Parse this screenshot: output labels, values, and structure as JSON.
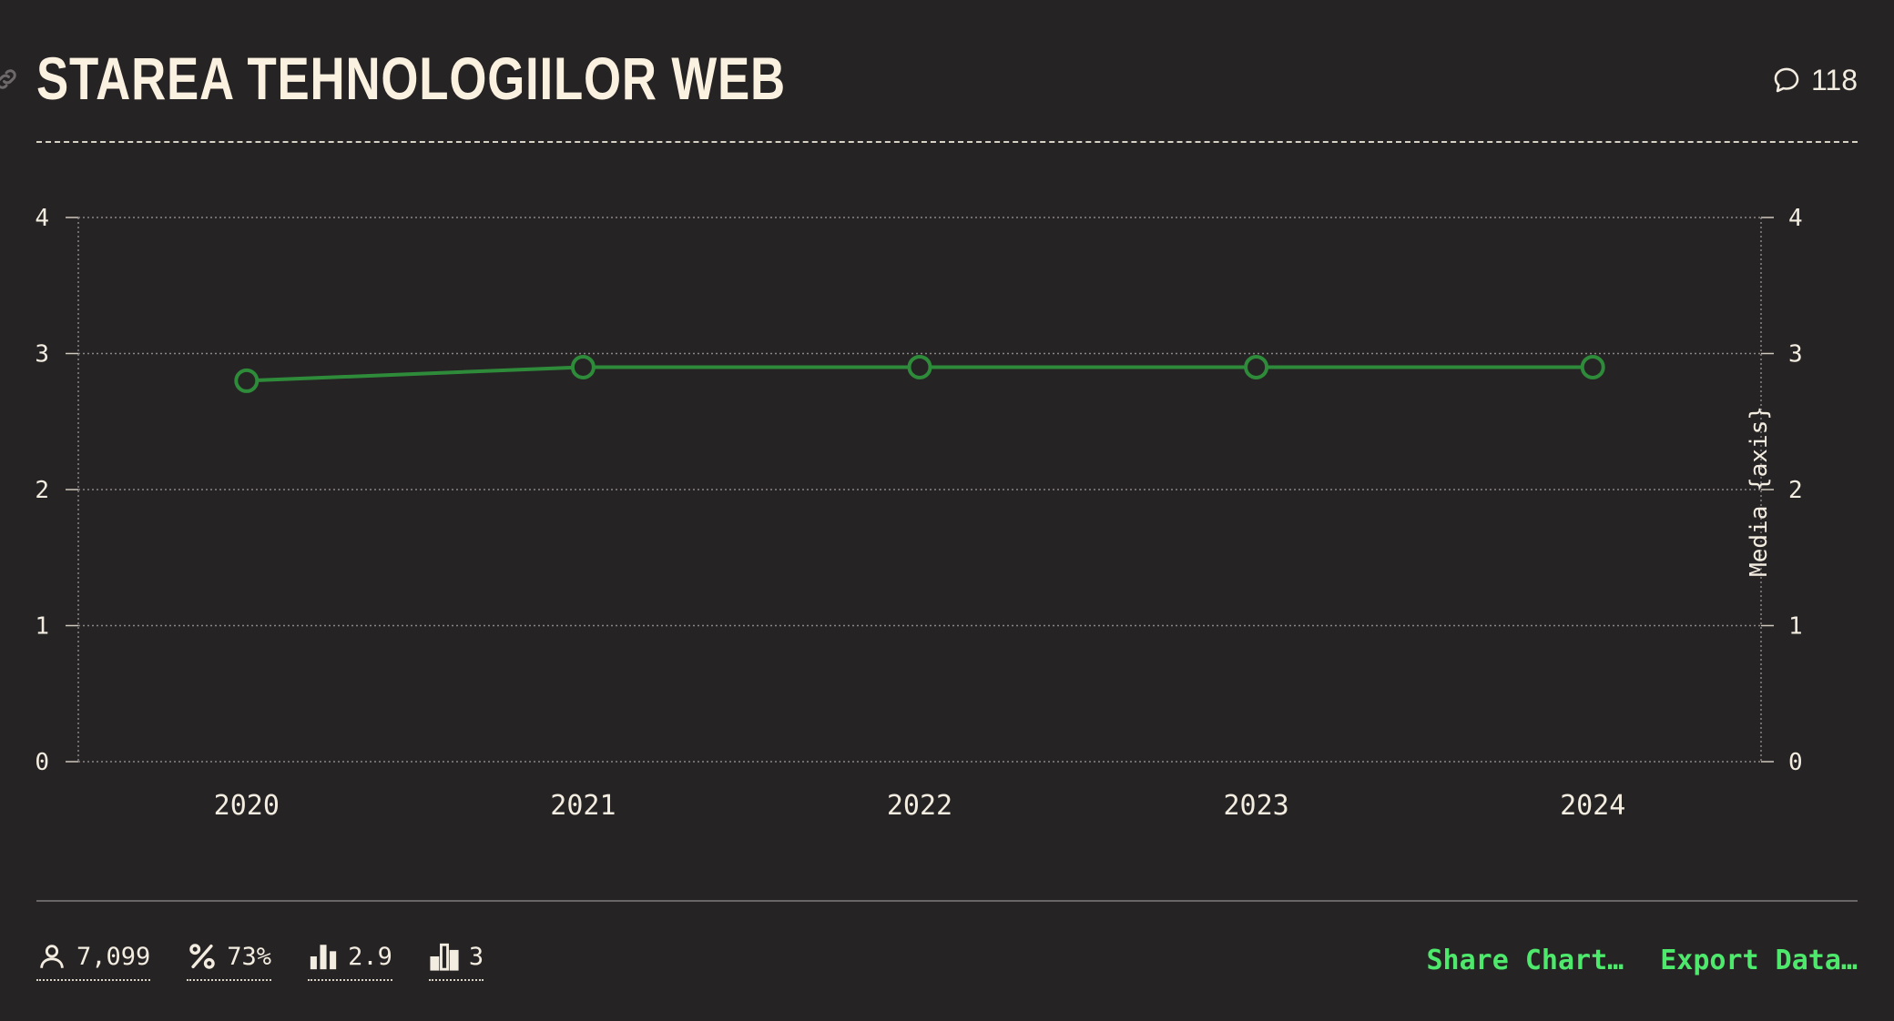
{
  "title": "STAREA TEHNOLOGIILOR WEB",
  "comments": {
    "count": "118",
    "icon": "speech-bubble-icon"
  },
  "chart_data": {
    "type": "line",
    "categories": [
      "2020",
      "2021",
      "2022",
      "2023",
      "2024"
    ],
    "series": [
      {
        "values": [
          2.8,
          2.9,
          2.9,
          2.9,
          2.9
        ],
        "color": "#2e8b3a"
      }
    ],
    "ylim": [
      0,
      4
    ],
    "yticks": [
      "0",
      "1",
      "2",
      "3",
      "4"
    ],
    "y2label": "Media {axis}",
    "grid": true
  },
  "footer": {
    "stats": [
      {
        "icon": "user-icon",
        "value": "7,099"
      },
      {
        "icon": "percent-icon",
        "value": "73%"
      },
      {
        "icon": "bar-chart-icon",
        "value": "2.9"
      },
      {
        "icon": "bar-chart-icon",
        "value": "3"
      }
    ],
    "actions": {
      "share": "Share Chart…",
      "export": "Export Data…"
    }
  },
  "colors": {
    "background": "#262324",
    "accent": "#4ee86c",
    "line": "#2e8b3a"
  }
}
